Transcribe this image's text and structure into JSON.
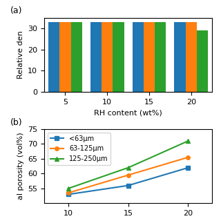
{
  "chart_data": [
    {
      "type": "bar",
      "categories": [
        "5",
        "10",
        "15",
        "20"
      ],
      "series": [
        {
          "values": [
            33,
            33,
            33,
            33
          ]
        },
        {
          "values": [
            33,
            33,
            33,
            33
          ]
        },
        {
          "values": [
            33,
            33,
            33,
            29
          ]
        }
      ],
      "xlabel": "RH content (wt%)",
      "ylabel": "Relative den",
      "ylim": [
        0,
        35
      ],
      "yticks": [
        0,
        10,
        20,
        30
      ],
      "annotations": [
        "(a)"
      ]
    },
    {
      "type": "line",
      "x": [
        10,
        15,
        20
      ],
      "series": [
        {
          "name": "<63μm",
          "marker": "square",
          "values": [
            53.0,
            56.0,
            62.0
          ]
        },
        {
          "name": "63-125μm",
          "marker": "circle",
          "values": [
            53.5,
            59.5,
            65.5
          ]
        },
        {
          "name": "125-250μm",
          "marker": "triangle",
          "values": [
            55.0,
            62.0,
            71.0
          ]
        }
      ],
      "ylabel": "al porosity (vol%)",
      "xlim": [
        8,
        22
      ],
      "xticks": [
        10,
        15,
        20
      ],
      "ylim": [
        50,
        75
      ],
      "yticks": [
        55,
        60,
        65,
        70,
        75
      ],
      "legend": "upper left",
      "annotations": [
        "(b)"
      ]
    }
  ]
}
